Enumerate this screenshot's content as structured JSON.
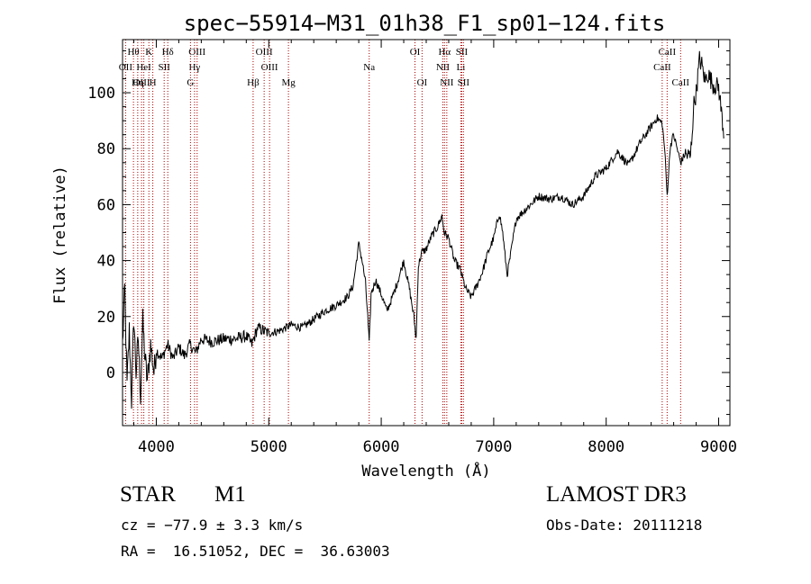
{
  "chart_data": {
    "type": "line",
    "title": "spec−55914−M31_01h38_F1_sp01−124.fits",
    "xlabel": "Wavelength (Å)",
    "ylabel": "Flux (relative)",
    "xlim": [
      3700,
      9100
    ],
    "ylim": [
      -19,
      119
    ],
    "xticks": [
      4000,
      5000,
      6000,
      7000,
      8000,
      9000
    ],
    "xtick_labels": [
      "4000",
      "5000",
      "6000",
      "7000",
      "8000",
      "9000"
    ],
    "yticks": [
      0,
      20,
      40,
      60,
      80,
      100
    ],
    "ytick_labels": [
      "0",
      "20",
      "40",
      "60",
      "80",
      "100"
    ],
    "grid": false,
    "series": [
      {
        "name": "spectrum",
        "x": [
          3700,
          3720,
          3740,
          3760,
          3780,
          3800,
          3820,
          3840,
          3860,
          3880,
          3900,
          3920,
          3950,
          3980,
          4000,
          4050,
          4100,
          4150,
          4200,
          4250,
          4300,
          4350,
          4400,
          4500,
          4600,
          4700,
          4800,
          4850,
          4900,
          5000,
          5100,
          5200,
          5300,
          5400,
          5500,
          5600,
          5700,
          5750,
          5800,
          5830,
          5860,
          5880,
          5893,
          5910,
          5950,
          6000,
          6050,
          6100,
          6150,
          6200,
          6250,
          6270,
          6290,
          6310,
          6330,
          6360,
          6400,
          6450,
          6500,
          6540,
          6560,
          6600,
          6650,
          6700,
          6750,
          6800,
          6850,
          6900,
          6950,
          7000,
          7050,
          7080,
          7100,
          7120,
          7150,
          7200,
          7300,
          7400,
          7500,
          7600,
          7700,
          7800,
          7900,
          8000,
          8100,
          8200,
          8300,
          8400,
          8450,
          8498,
          8520,
          8542,
          8570,
          8600,
          8662,
          8700,
          8750,
          8780,
          8800,
          8830,
          8850,
          8880,
          8900,
          8950,
          9000,
          9050
        ],
        "y": [
          10,
          30,
          -5,
          15,
          -10,
          20,
          0,
          12,
          -8,
          18,
          5,
          -3,
          10,
          0,
          8,
          5,
          10,
          5,
          9,
          6,
          10,
          7,
          12,
          11,
          12,
          12,
          13,
          10,
          16,
          14,
          15,
          17,
          16,
          19,
          22,
          24,
          27,
          31,
          46,
          40,
          32,
          20,
          10,
          28,
          33,
          28,
          22,
          27,
          33,
          40,
          30,
          25,
          20,
          12,
          38,
          43,
          44,
          49,
          52,
          56,
          50,
          48,
          40,
          37,
          30,
          27,
          31,
          36,
          43,
          48,
          57,
          50,
          42,
          35,
          42,
          55,
          59,
          63,
          62,
          63,
          60,
          63,
          70,
          73,
          79,
          74,
          82,
          88,
          91,
          89,
          80,
          63,
          81,
          85,
          75,
          78,
          77,
          96,
          100,
          112,
          110,
          104,
          107,
          103,
          102,
          84
        ]
      }
    ],
    "line_markers": [
      {
        "label": "Hθ",
        "x": 3797,
        "row": 1
      },
      {
        "label": "OII",
        "x": 3727,
        "row": 2
      },
      {
        "label": "OIII",
        "x": 3869,
        "row": 3
      },
      {
        "label": "Hη",
        "x": 3835,
        "row": 3
      },
      {
        "label": "K",
        "x": 3934,
        "row": 1
      },
      {
        "label": "H",
        "x": 3969,
        "row": 3
      },
      {
        "label": "HeI",
        "x": 3889,
        "row": 2
      },
      {
        "label": "SII",
        "x": 4070,
        "row": 2
      },
      {
        "label": "Hδ",
        "x": 4102,
        "row": 1
      },
      {
        "label": "OIII",
        "x": 4363,
        "row": 1
      },
      {
        "label": "Hγ",
        "x": 4340,
        "row": 2
      },
      {
        "label": "G",
        "x": 4304,
        "row": 3
      },
      {
        "label": "OIII",
        "x": 4959,
        "row": 1
      },
      {
        "label": "OIII",
        "x": 5007,
        "row": 2
      },
      {
        "label": "Hβ",
        "x": 4861,
        "row": 3
      },
      {
        "label": "Mg",
        "x": 5175,
        "row": 3
      },
      {
        "label": "Na",
        "x": 5893,
        "row": 2
      },
      {
        "label": "OI",
        "x": 6300,
        "row": 1
      },
      {
        "label": "OI",
        "x": 6363,
        "row": 3
      },
      {
        "label": "Hα",
        "x": 6563,
        "row": 1
      },
      {
        "label": "NII",
        "x": 6548,
        "row": 2
      },
      {
        "label": "NII",
        "x": 6583,
        "row": 3
      },
      {
        "label": "SII",
        "x": 6716,
        "row": 1
      },
      {
        "label": "Li",
        "x": 6708,
        "row": 2
      },
      {
        "label": "SII",
        "x": 6731,
        "row": 3
      },
      {
        "label": "CaII",
        "x": 8542,
        "row": 1
      },
      {
        "label": "CaII",
        "x": 8498,
        "row": 2
      },
      {
        "label": "CaII",
        "x": 8662,
        "row": 3
      }
    ]
  },
  "info": {
    "object_class": "STAR",
    "subclass": "M1",
    "survey": "LAMOST DR3",
    "cz": "cz = −77.9 ± 3.3 km/s",
    "obs_date": "Obs-Date: 20111218",
    "coords": "RA =  16.51052, DEC =  36.63003"
  },
  "colors": {
    "spectrum": "#000000",
    "marker_line": "#aa0000",
    "axes": "#000000"
  }
}
